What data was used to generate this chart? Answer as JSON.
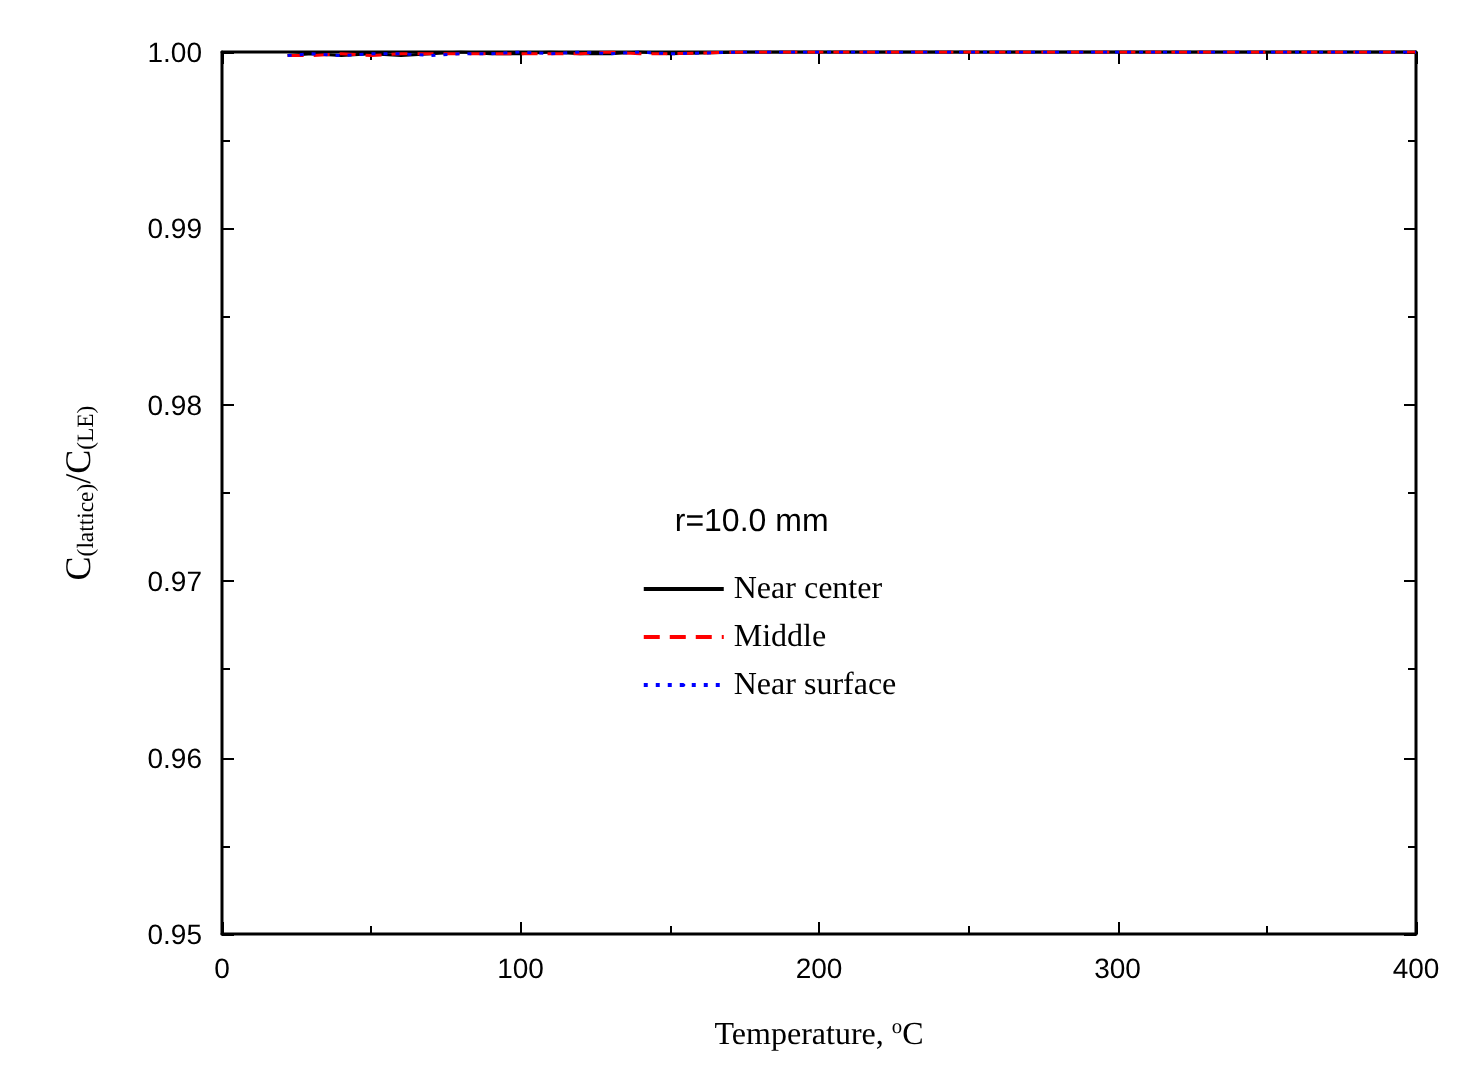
{
  "chart_data": {
    "type": "line",
    "xlabel": "Temperature, $^{o}$C",
    "ylabel": "C$_{(lattice)}$/C$_{(LE)}$",
    "annotations": [
      "r=10.0 mm"
    ],
    "series": [
      {
        "name": "Near center",
        "color": "#000000",
        "line_style": "solid",
        "x": [
          22,
          30,
          40,
          50,
          60,
          70,
          80,
          90,
          100,
          110,
          120,
          130,
          140,
          150,
          175,
          200,
          250,
          300,
          350,
          400
        ],
        "values": [
          0.9998,
          0.9999,
          0.9998,
          0.9999,
          0.9998,
          0.9999,
          1.0,
          0.9999,
          0.9999,
          1.0,
          0.9999,
          0.9999,
          1.0,
          0.9999,
          1.0,
          1.0,
          1.0,
          1.0,
          1.0,
          1.0
        ]
      },
      {
        "name": "Middle",
        "color": "#ff0000",
        "line_style": "dashed",
        "x": [
          22,
          30,
          40,
          50,
          60,
          70,
          80,
          90,
          100,
          110,
          120,
          130,
          140,
          150,
          175,
          200,
          250,
          300,
          350,
          400
        ],
        "values": [
          0.9998,
          0.9998,
          0.9999,
          0.9998,
          0.9999,
          0.9999,
          0.9999,
          0.9999,
          0.9999,
          0.9999,
          0.9999,
          1.0,
          0.9999,
          0.9999,
          1.0,
          1.0,
          1.0,
          1.0,
          1.0,
          1.0
        ]
      },
      {
        "name": "Near surface",
        "color": "#0000ff",
        "line_style": "dotted",
        "x": [
          22,
          30,
          40,
          50,
          60,
          70,
          80,
          90,
          100,
          110,
          120,
          130,
          140,
          150,
          175,
          200,
          250,
          300,
          350,
          400
        ],
        "values": [
          0.9998,
          0.9999,
          0.9998,
          0.9999,
          0.9999,
          0.9998,
          0.9999,
          0.9999,
          1.0,
          0.9999,
          1.0,
          0.9999,
          1.0,
          0.9999,
          1.0,
          1.0,
          1.0,
          1.0,
          1.0,
          1.0
        ]
      }
    ],
    "xlim": [
      0,
      400
    ],
    "xticks": [
      0,
      100,
      200,
      300,
      400
    ],
    "ylim": [
      0.95,
      1.0
    ],
    "yticks": [
      {
        "value": 0.95,
        "label": "0.95"
      },
      {
        "value": 0.96,
        "label": "0.96"
      },
      {
        "value": 0.97,
        "label": "0.97"
      },
      {
        "value": 0.98,
        "label": "0.98"
      },
      {
        "value": 0.99,
        "label": "0.99"
      },
      {
        "value": 1.0,
        "label": "1.00"
      }
    ],
    "legend": "center",
    "grid": false,
    "marker": "none"
  }
}
